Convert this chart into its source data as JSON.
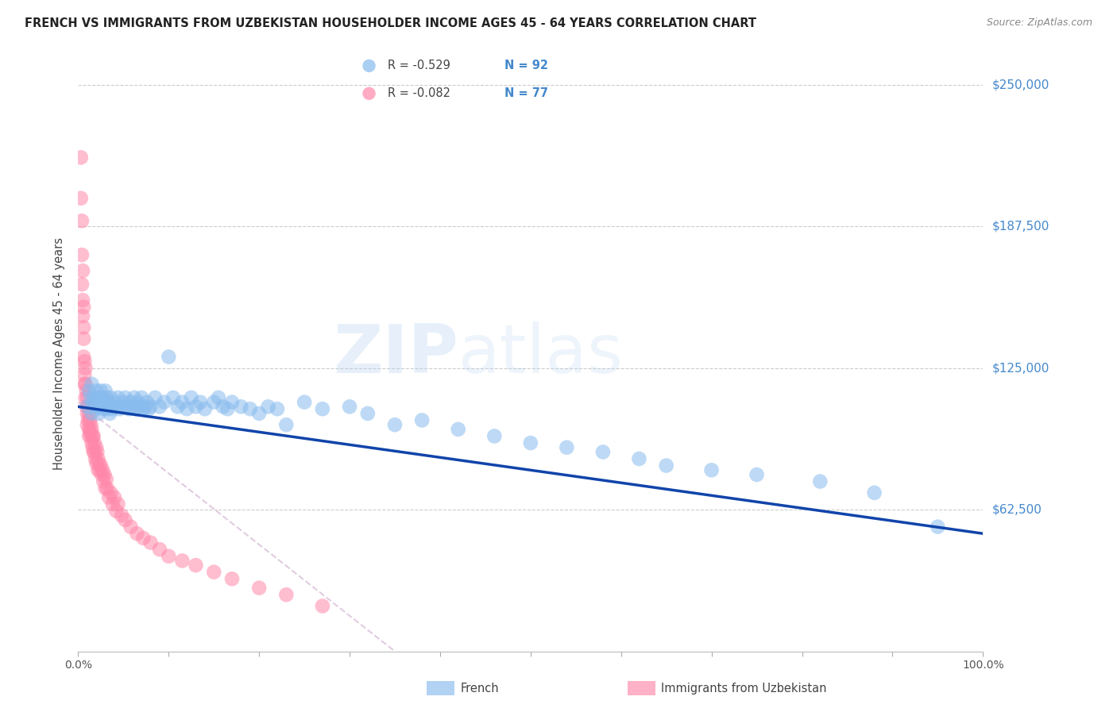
{
  "title": "FRENCH VS IMMIGRANTS FROM UZBEKISTAN HOUSEHOLDER INCOME AGES 45 - 64 YEARS CORRELATION CHART",
  "source": "Source: ZipAtlas.com",
  "ylabel": "Householder Income Ages 45 - 64 years",
  "ytick_labels": [
    "$62,500",
    "$125,000",
    "$187,500",
    "$250,000"
  ],
  "ytick_values": [
    62500,
    125000,
    187500,
    250000
  ],
  "ymin": 0,
  "ymax": 262500,
  "xmin": 0.0,
  "xmax": 1.0,
  "legend_french_R": "-0.529",
  "legend_french_N": "92",
  "legend_uzbek_R": "-0.082",
  "legend_uzbek_N": "77",
  "french_color": "#88BBEE",
  "uzbek_color": "#FF88AA",
  "french_line_color": "#1144AA",
  "uzbek_line_color": "#DDBBCC",
  "grid_color": "#CCCCCC",
  "title_color": "#222222",
  "ytick_color": "#4488CC",
  "french_scatter_x": [
    0.01,
    0.012,
    0.014,
    0.015,
    0.015,
    0.016,
    0.017,
    0.018,
    0.019,
    0.02,
    0.02,
    0.021,
    0.022,
    0.023,
    0.024,
    0.025,
    0.026,
    0.027,
    0.028,
    0.029,
    0.03,
    0.03,
    0.031,
    0.032,
    0.033,
    0.034,
    0.035,
    0.036,
    0.037,
    0.038,
    0.04,
    0.042,
    0.044,
    0.046,
    0.048,
    0.05,
    0.052,
    0.054,
    0.056,
    0.058,
    0.06,
    0.062,
    0.064,
    0.066,
    0.068,
    0.07,
    0.072,
    0.074,
    0.076,
    0.078,
    0.08,
    0.085,
    0.09,
    0.095,
    0.1,
    0.105,
    0.11,
    0.115,
    0.12,
    0.125,
    0.13,
    0.135,
    0.14,
    0.15,
    0.155,
    0.16,
    0.165,
    0.17,
    0.18,
    0.19,
    0.2,
    0.21,
    0.22,
    0.23,
    0.25,
    0.27,
    0.3,
    0.32,
    0.35,
    0.38,
    0.42,
    0.46,
    0.5,
    0.54,
    0.58,
    0.62,
    0.65,
    0.7,
    0.75,
    0.82,
    0.88,
    0.95
  ],
  "french_scatter_y": [
    108000,
    115000,
    112000,
    105000,
    118000,
    110000,
    108000,
    112000,
    107000,
    115000,
    110000,
    108000,
    112000,
    105000,
    110000,
    115000,
    108000,
    112000,
    107000,
    110000,
    108000,
    115000,
    112000,
    107000,
    110000,
    108000,
    105000,
    112000,
    108000,
    107000,
    110000,
    108000,
    112000,
    107000,
    108000,
    110000,
    112000,
    108000,
    107000,
    110000,
    108000,
    112000,
    107000,
    110000,
    108000,
    112000,
    107000,
    108000,
    110000,
    107000,
    108000,
    112000,
    108000,
    110000,
    130000,
    112000,
    108000,
    110000,
    107000,
    112000,
    108000,
    110000,
    107000,
    110000,
    112000,
    108000,
    107000,
    110000,
    108000,
    107000,
    105000,
    108000,
    107000,
    100000,
    110000,
    107000,
    108000,
    105000,
    100000,
    102000,
    98000,
    95000,
    92000,
    90000,
    88000,
    85000,
    82000,
    80000,
    78000,
    75000,
    70000,
    55000
  ],
  "uzbek_scatter_x": [
    0.003,
    0.003,
    0.004,
    0.004,
    0.004,
    0.005,
    0.005,
    0.005,
    0.006,
    0.006,
    0.006,
    0.006,
    0.007,
    0.007,
    0.007,
    0.008,
    0.008,
    0.008,
    0.009,
    0.009,
    0.01,
    0.01,
    0.01,
    0.011,
    0.011,
    0.012,
    0.012,
    0.012,
    0.013,
    0.013,
    0.014,
    0.014,
    0.015,
    0.015,
    0.016,
    0.016,
    0.017,
    0.017,
    0.018,
    0.018,
    0.019,
    0.02,
    0.02,
    0.021,
    0.022,
    0.022,
    0.023,
    0.024,
    0.025,
    0.026,
    0.027,
    0.028,
    0.029,
    0.03,
    0.031,
    0.032,
    0.034,
    0.036,
    0.038,
    0.04,
    0.042,
    0.044,
    0.048,
    0.052,
    0.058,
    0.065,
    0.072,
    0.08,
    0.09,
    0.1,
    0.115,
    0.13,
    0.15,
    0.17,
    0.2,
    0.23,
    0.27
  ],
  "uzbek_scatter_y": [
    218000,
    200000,
    190000,
    175000,
    162000,
    168000,
    155000,
    148000,
    152000,
    143000,
    138000,
    130000,
    128000,
    122000,
    118000,
    125000,
    118000,
    112000,
    115000,
    108000,
    112000,
    105000,
    100000,
    108000,
    102000,
    105000,
    98000,
    95000,
    102000,
    97000,
    100000,
    95000,
    98000,
    92000,
    95000,
    90000,
    95000,
    88000,
    92000,
    88000,
    85000,
    90000,
    83000,
    88000,
    85000,
    80000,
    83000,
    80000,
    82000,
    78000,
    80000,
    75000,
    78000,
    72000,
    76000,
    72000,
    68000,
    70000,
    65000,
    68000,
    62000,
    65000,
    60000,
    58000,
    55000,
    52000,
    50000,
    48000,
    45000,
    42000,
    40000,
    38000,
    35000,
    32000,
    28000,
    25000,
    20000
  ]
}
